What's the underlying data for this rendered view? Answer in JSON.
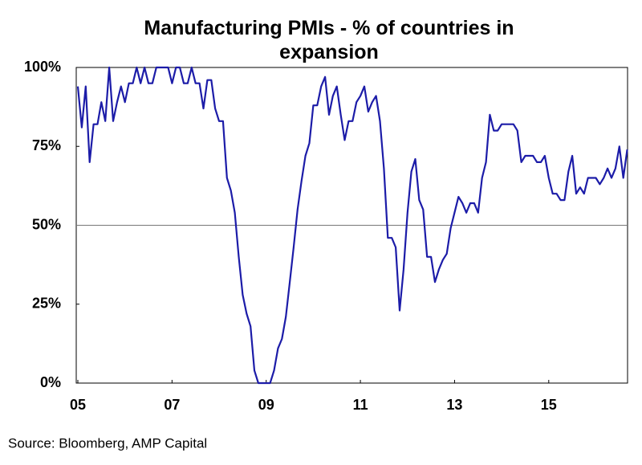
{
  "chart_data": {
    "type": "line",
    "title": "Manufacturing PMIs - % of countries in expansion",
    "source": "Source: Bloomberg, AMP Capital",
    "categories": [
      "05",
      null,
      null,
      null,
      null,
      null,
      null,
      null,
      null,
      null,
      null,
      null,
      null,
      null,
      null,
      null,
      null,
      null,
      null,
      null,
      null,
      null,
      null,
      null,
      "07",
      null,
      null,
      null,
      null,
      null,
      null,
      null,
      null,
      null,
      null,
      null,
      null,
      null,
      null,
      null,
      null,
      null,
      null,
      null,
      null,
      null,
      null,
      null,
      "09",
      null,
      null,
      null,
      null,
      null,
      null,
      null,
      null,
      null,
      null,
      null,
      null,
      null,
      null,
      null,
      null,
      null,
      null,
      null,
      null,
      null,
      null,
      null,
      "11",
      null,
      null,
      null,
      null,
      null,
      null,
      null,
      null,
      null,
      null,
      null,
      null,
      null,
      null,
      null,
      null,
      null,
      null,
      null,
      null,
      null,
      null,
      null,
      "13",
      null,
      null,
      null,
      null,
      null,
      null,
      null,
      null,
      null,
      null,
      null,
      null,
      null,
      null,
      null,
      null,
      null,
      null,
      null,
      null,
      null,
      null,
      null,
      "15",
      null,
      null,
      null,
      null,
      null,
      null,
      null,
      null,
      null,
      null,
      null,
      null,
      null,
      null,
      null,
      null,
      null,
      null,
      null,
      null
    ],
    "series": [
      {
        "color": "#1c1ca8",
        "values": [
          94,
          81,
          94,
          70,
          82,
          82,
          89,
          83,
          100,
          83,
          89,
          94,
          89,
          95,
          95,
          100,
          95,
          100,
          95,
          95,
          100,
          100,
          100,
          100,
          95,
          100,
          100,
          95,
          95,
          100,
          95,
          95,
          87,
          96,
          96,
          87,
          83,
          83,
          65,
          61,
          54,
          40,
          28,
          22,
          18,
          4,
          0,
          0,
          0,
          0,
          4,
          11,
          14,
          21,
          32,
          43,
          55,
          64,
          72,
          76,
          88,
          88,
          94,
          97,
          85,
          91,
          94,
          85,
          77,
          83,
          83,
          89,
          91,
          94,
          86,
          89,
          91,
          83,
          68,
          46,
          46,
          43,
          23,
          36,
          54,
          67,
          71,
          58,
          55,
          40,
          40,
          32,
          36,
          39,
          41,
          49,
          54,
          59,
          57,
          54,
          57,
          57,
          54,
          65,
          70,
          85,
          80,
          80,
          82,
          82,
          82,
          82,
          80,
          70,
          72,
          72,
          72,
          70,
          70,
          72,
          65,
          60,
          60,
          58,
          58,
          67,
          72,
          60,
          62,
          60,
          65,
          65,
          65,
          63,
          65,
          68,
          65,
          68,
          75,
          65,
          74
        ]
      }
    ],
    "ylim": [
      0,
      100
    ],
    "yticks": [
      {
        "value": 0,
        "label": "0%"
      },
      {
        "value": 25,
        "label": "25%"
      },
      {
        "value": 50,
        "label": "50%"
      },
      {
        "value": 75,
        "label": "75%"
      },
      {
        "value": 100,
        "label": "100%"
      }
    ],
    "hline": 50
  }
}
